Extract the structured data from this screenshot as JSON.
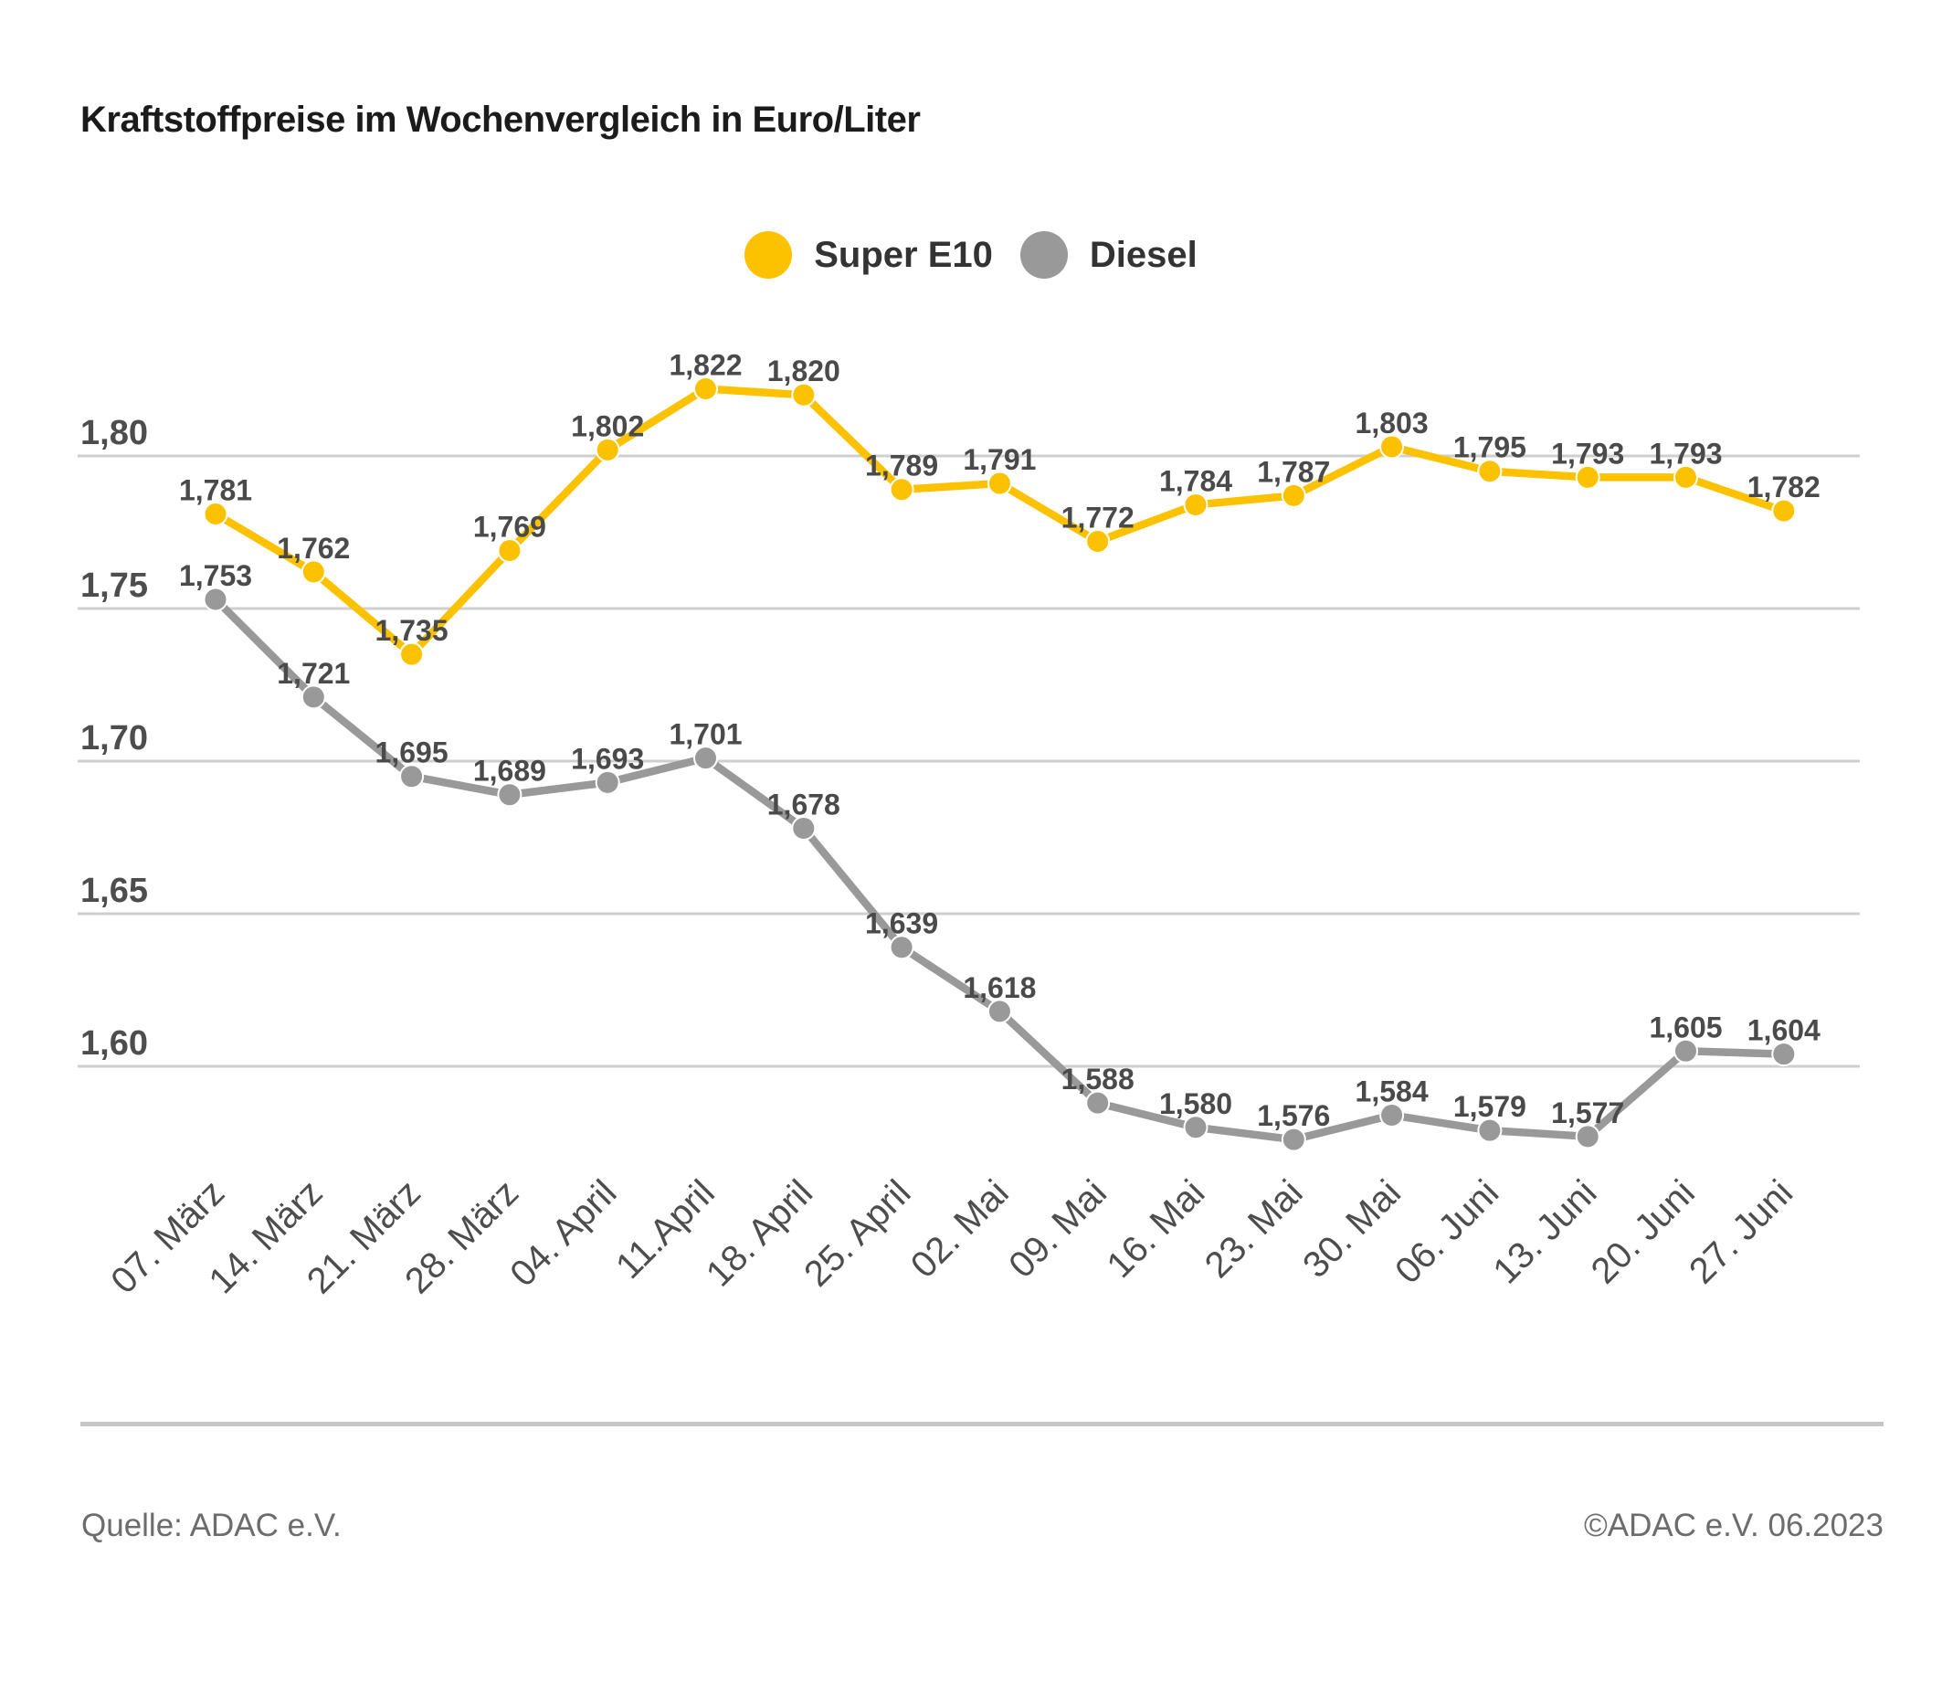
{
  "title": "Kraftstoffpreise im Wochenvergleich in Euro/Liter",
  "legend": {
    "items": [
      {
        "label": "Super E10",
        "color": "#FCC200"
      },
      {
        "label": "Diesel",
        "color": "#999999"
      }
    ]
  },
  "chart_data": {
    "type": "line",
    "title": "Kraftstoffpreise im Wochenvergleich in Euro/Liter",
    "xlabel": "",
    "ylabel": "Euro/Liter",
    "grid": "horizontal",
    "legend_position": "top-center",
    "ylim": [
      1.56,
      1.84
    ],
    "yticks": [
      1.8,
      1.75,
      1.7,
      1.65,
      1.6
    ],
    "categories": [
      "07. März",
      "14. März",
      "21. März",
      "28. März",
      "04. April",
      "11.April",
      "18. April",
      "25. April",
      "02. Mai",
      "09. Mai",
      "16. Mai",
      "23. Mai",
      "30. Mai",
      "06. Juni",
      "13. Juni",
      "20. Juni",
      "27. Juni"
    ],
    "series": [
      {
        "name": "Super E10",
        "color": "#FCC200",
        "values": [
          1.781,
          1.762,
          1.735,
          1.769,
          1.802,
          1.822,
          1.82,
          1.789,
          1.791,
          1.772,
          1.784,
          1.787,
          1.803,
          1.795,
          1.793,
          1.793,
          1.782
        ]
      },
      {
        "name": "Diesel",
        "color": "#999999",
        "values": [
          1.753,
          1.721,
          1.695,
          1.689,
          1.693,
          1.701,
          1.678,
          1.639,
          1.618,
          1.588,
          1.58,
          1.576,
          1.584,
          1.579,
          1.577,
          1.605,
          1.604
        ]
      }
    ],
    "value_label_decimals": 3,
    "decimal_separator": ","
  },
  "footer": {
    "source": "Quelle: ADAC e.V.",
    "copyright": "©ADAC e.V. 06.2023"
  }
}
